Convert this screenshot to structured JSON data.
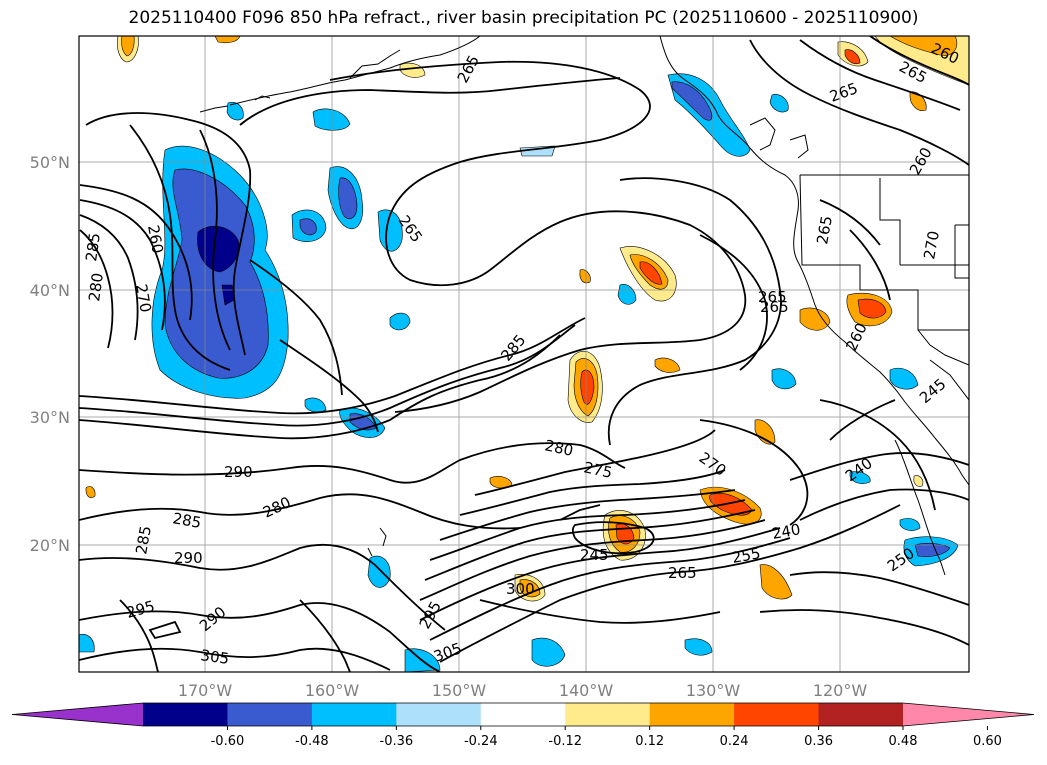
{
  "title": "2025110400 F096 850 hPa refract., river basin precipitation PC (2025110600 - 2025110900)",
  "lat_labels": [
    "50°N",
    "40°N",
    "30°N",
    "20°N"
  ],
  "lon_labels": [
    "170°W",
    "160°W",
    "150°W",
    "140°W",
    "130°W",
    "120°W"
  ],
  "colorbar": {
    "colors": [
      "#9932CC",
      "#00008B",
      "#3A5BD0",
      "#00BFFF",
      "#ADE0FB",
      "#FFFFFF",
      "#FFEB8C",
      "#FFA500",
      "#FF4500",
      "#B22222",
      "#FF88AA"
    ],
    "labels": [
      "-0.60",
      "-0.48",
      "-0.36",
      "-0.24",
      "-0.12",
      "0.12",
      "0.24",
      "0.36",
      "0.48",
      "0.60"
    ]
  },
  "contour_labels": [
    "265",
    "265",
    "265",
    "265",
    "260",
    "260",
    "260",
    "265",
    "285",
    "280",
    "270",
    "265",
    "265",
    "285",
    "280",
    "275",
    "270",
    "290",
    "280",
    "285",
    "290",
    "285",
    "295",
    "290",
    "305",
    "300",
    "295",
    "305",
    "245",
    "265",
    "255",
    "240",
    "240",
    "250",
    "245",
    "260",
    "270"
  ]
}
